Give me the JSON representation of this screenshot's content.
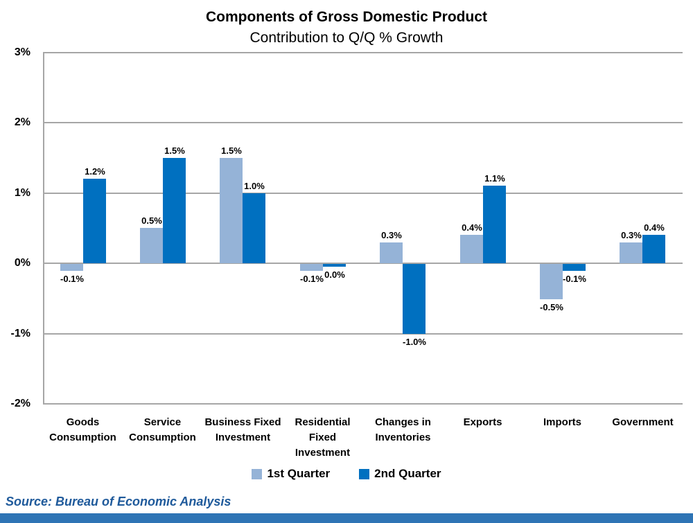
{
  "title": {
    "line1": "Components of Gross Domestic Product",
    "line2": "Contribution to Q/Q % Growth"
  },
  "source": {
    "text": "Source: Bureau of Economic Analysis"
  },
  "colors": {
    "series1": "#95B3D7",
    "series2": "#0070C0",
    "gridline": "#A6A6A6",
    "axis_line": "#A6A6A6",
    "text": "#000000",
    "source_text": "#1F5A9B",
    "bottom_bar": "#2E74B5"
  },
  "chart_data": {
    "type": "bar",
    "title": "Components of Gross Domestic Product",
    "subtitle": "Contribution to Q/Q % Growth",
    "xlabel": "",
    "ylabel": "",
    "ylim": [
      -2,
      3
    ],
    "grid": true,
    "legend_position": "bottom",
    "categories": [
      "Goods Consumption",
      "Service Consumption",
      "Business Fixed Investment",
      "Residential Fixed Investment",
      "Changes in Inventories",
      "Exports",
      "Imports",
      "Government"
    ],
    "yticks": [
      {
        "label": "3%",
        "value": 3
      },
      {
        "label": "2%",
        "value": 2
      },
      {
        "label": "1%",
        "value": 1
      },
      {
        "label": "0%",
        "value": 0
      },
      {
        "label": "-1%",
        "value": -1
      },
      {
        "label": "-2%",
        "value": -2
      }
    ],
    "series": [
      {
        "name": "1st Quarter",
        "color": "#95B3D7",
        "values": [
          -0.1,
          0.5,
          1.5,
          -0.1,
          0.3,
          0.4,
          -0.5,
          0.3
        ],
        "labels": [
          "-0.1%",
          "0.5%",
          "1.5%",
          "-0.1%",
          "0.3%",
          "0.4%",
          "-0.5%",
          "0.3%"
        ]
      },
      {
        "name": "2nd Quarter",
        "color": "#0070C0",
        "values": [
          1.2,
          1.5,
          1.0,
          0.0,
          -1.0,
          1.1,
          -0.1,
          0.4
        ],
        "drawn_values": [
          1.2,
          1.5,
          1.0,
          -0.04,
          -1.0,
          1.1,
          -0.1,
          0.4
        ],
        "labels": [
          "1.2%",
          "1.5%",
          "1.0%",
          "0.0%",
          "-1.0%",
          "1.1%",
          "-0.1%",
          "0.4%"
        ]
      }
    ]
  }
}
